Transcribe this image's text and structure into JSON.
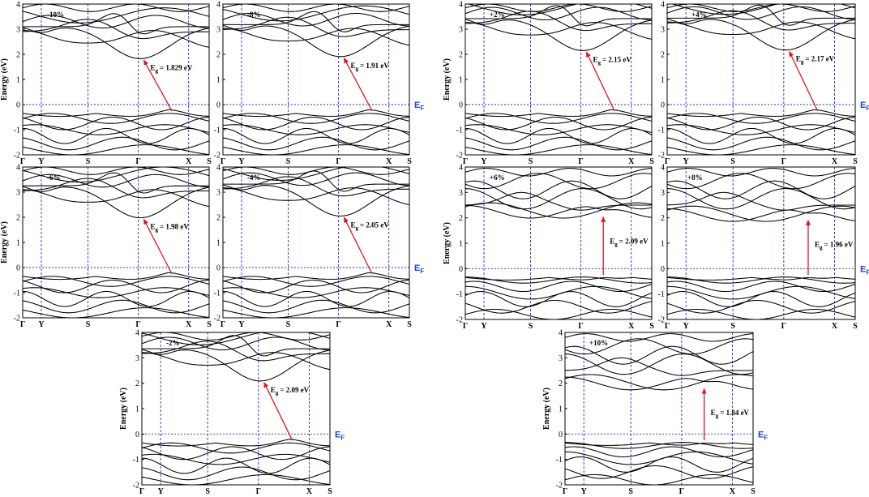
{
  "colors": {
    "bands": "#000000",
    "kpath_lines": "#2a2ad0",
    "fermi_line": "#2a2ad0",
    "arrow": "#e0141e",
    "ef_label": "#1f3fd0"
  },
  "ylabel": "Energy (eV)",
  "fermi_label": {
    "main": "E",
    "sub": "F"
  },
  "gap_symbol": {
    "main": "E",
    "sub": "g"
  },
  "kpath_labels": [
    "Γ",
    "Y",
    "S",
    "Γ",
    "X",
    "S"
  ],
  "chart_data": [
    {
      "type": "line",
      "strain": "-10%",
      "gap": "= 1.829 eV",
      "ylim": [
        -2,
        4
      ],
      "yticks": [
        "4",
        "3",
        "2",
        "1",
        "0",
        "-1",
        "-2"
      ],
      "cbm": 1.829,
      "vbm_k": 0.8,
      "cbm_k": 0.65,
      "bands": "A"
    },
    {
      "type": "line",
      "strain": "-8%",
      "gap": "= 1.91 eV",
      "ylim": [
        -2,
        4
      ],
      "yticks": [
        "4",
        "3",
        "2",
        "1",
        "0",
        "-1",
        "-2"
      ],
      "cbm": 1.91,
      "vbm_k": 0.8,
      "cbm_k": 0.65,
      "bands": "A"
    },
    {
      "type": "line",
      "strain": "+2%",
      "gap": "= 2.15 eV",
      "ylim": [
        -2,
        4
      ],
      "yticks": [
        "4",
        "3",
        "2",
        "1",
        "0",
        "-1",
        "-2"
      ],
      "cbm": 2.15,
      "vbm_k": 0.8,
      "cbm_k": 0.65,
      "bands": "B"
    },
    {
      "type": "line",
      "strain": "+4%",
      "gap": "= 2.17 eV",
      "ylim": [
        -2,
        4
      ],
      "yticks": [
        "4",
        "3",
        "2",
        "1",
        "0",
        "-1",
        "-2"
      ],
      "cbm": 2.17,
      "vbm_k": 0.8,
      "cbm_k": 0.65,
      "bands": "B"
    },
    {
      "type": "line",
      "strain": "-6%",
      "gap": "= 1.98 eV",
      "ylim": [
        -2,
        4
      ],
      "yticks": [
        "4",
        "3",
        "2",
        "1",
        "0",
        "-1",
        "-2"
      ],
      "cbm": 1.98,
      "vbm_k": 0.8,
      "cbm_k": 0.65,
      "bands": "A"
    },
    {
      "type": "line",
      "strain": "-4%",
      "gap": "= 2.05 eV",
      "ylim": [
        -2,
        4
      ],
      "yticks": [
        "4",
        "3",
        "2",
        "1",
        "0",
        "-1",
        "-2"
      ],
      "cbm": 2.05,
      "vbm_k": 0.8,
      "cbm_k": 0.65,
      "bands": "A"
    },
    {
      "type": "line",
      "strain": "+6%",
      "gap": "= 2.09 eV",
      "ylim": [
        -2,
        4
      ],
      "yticks": [
        "4",
        "3",
        "2",
        "1",
        "0",
        "-1",
        "-2"
      ],
      "cbm": 2.09,
      "vbm_k": 0.74,
      "cbm_k": 0.74,
      "bands": "C"
    },
    {
      "type": "line",
      "strain": "+8%",
      "gap": "= 1.96 eV",
      "ylim": [
        -2,
        4
      ],
      "yticks": [
        "4",
        "3",
        "2",
        "1",
        "0",
        "-1",
        "-2"
      ],
      "cbm": 1.96,
      "vbm_k": 0.75,
      "cbm_k": 0.75,
      "bands": "C"
    },
    {
      "type": "line",
      "strain": "-2%",
      "gap": "= 2.09 eV",
      "ylim": [
        -2,
        4
      ],
      "yticks": [
        "4",
        "3",
        "2",
        "1",
        "0",
        "-1",
        "-2"
      ],
      "cbm": 2.09,
      "vbm_k": 0.8,
      "cbm_k": 0.65,
      "bands": "A"
    },
    {
      "type": "line",
      "strain": "+10%",
      "gap": "= 1.84 eV",
      "ylim": [
        -2,
        4
      ],
      "yticks": [
        "4",
        "3",
        "2",
        "1",
        "0",
        "-1",
        "-2"
      ],
      "cbm": 1.84,
      "vbm_k": 0.74,
      "cbm_k": 0.74,
      "bands": "C"
    }
  ]
}
